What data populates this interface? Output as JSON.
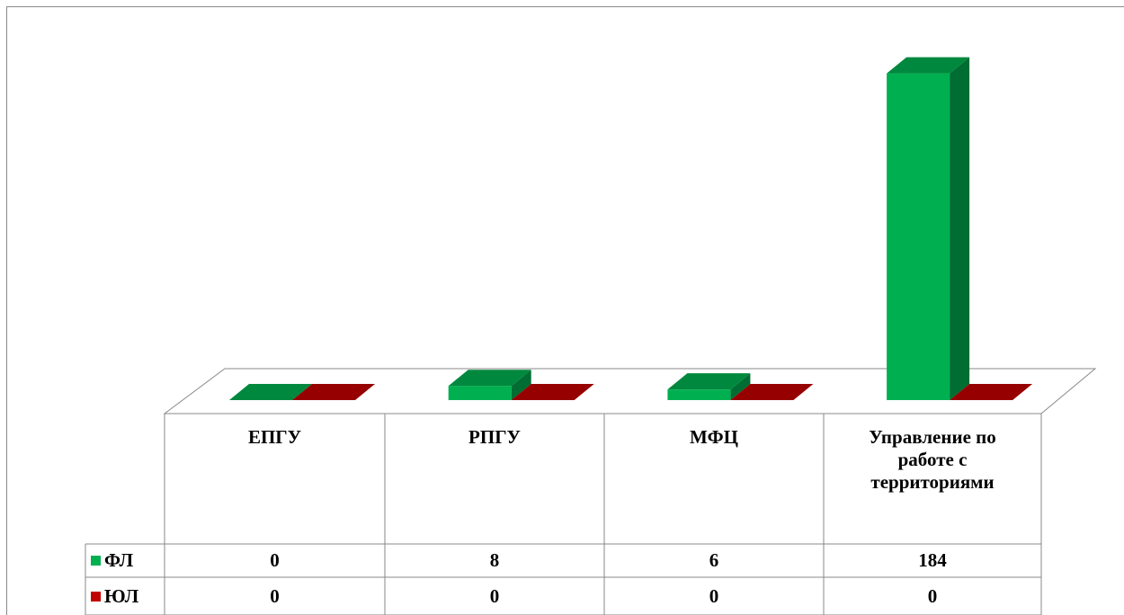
{
  "chart_data": {
    "type": "bar",
    "categories": [
      "ЕПГУ",
      "РПГУ",
      "МФЦ",
      "Управление по работе с территориями"
    ],
    "series": [
      {
        "name": "ФЛ",
        "color": "#00b050",
        "values": [
          0,
          8,
          6,
          184
        ]
      },
      {
        "name": "ЮЛ",
        "color": "#c00000",
        "values": [
          0,
          0,
          0,
          0
        ]
      }
    ],
    "ylim": [
      0,
      200
    ]
  }
}
